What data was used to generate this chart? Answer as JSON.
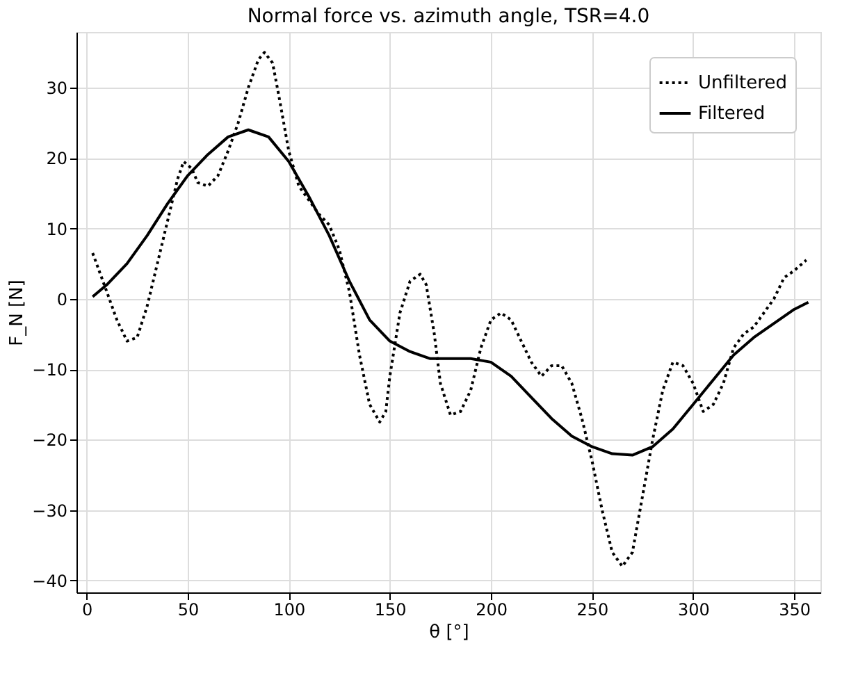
{
  "chart_data": {
    "type": "line",
    "title": "Normal force vs. azimuth angle, TSR=4.0",
    "xlabel": "θ [°]",
    "ylabel": "F_N [N]",
    "xlim": [
      -5,
      363
    ],
    "ylim": [
      -41.7,
      37.9
    ],
    "xticks": [
      0,
      50,
      100,
      150,
      200,
      250,
      300,
      350
    ],
    "yticks": [
      -40,
      -30,
      -20,
      -10,
      0,
      10,
      20,
      30
    ],
    "grid": true,
    "legend": "top right",
    "marker": "none",
    "series": [
      {
        "name": "Unfiltered",
        "color": "#000000",
        "line_style": "dotted",
        "x": [
          3,
          10,
          15,
          20,
          25,
          30,
          35,
          40,
          45,
          48,
          52,
          55,
          60,
          65,
          70,
          75,
          80,
          85,
          88,
          92,
          95,
          100,
          105,
          110,
          115,
          120,
          125,
          130,
          135,
          140,
          145,
          148,
          150,
          155,
          160,
          165,
          168,
          172,
          175,
          180,
          185,
          190,
          195,
          200,
          205,
          210,
          215,
          220,
          225,
          230,
          235,
          240,
          245,
          250,
          255,
          260,
          265,
          270,
          275,
          280,
          285,
          290,
          295,
          300,
          305,
          310,
          315,
          320,
          325,
          330,
          335,
          340,
          345,
          350,
          356
        ],
        "values": [
          6.5,
          1,
          -3,
          -6,
          -5.5,
          -1,
          5,
          11,
          17,
          19.5,
          18.5,
          16.5,
          16,
          17.5,
          21,
          25,
          30,
          34,
          35,
          33.5,
          29,
          21,
          16,
          14,
          12,
          10.5,
          7,
          1,
          -8,
          -15,
          -17.5,
          -16,
          -11,
          -2,
          2.5,
          3.5,
          2,
          -5,
          -12,
          -16.5,
          -16,
          -13,
          -7,
          -3,
          -2,
          -3,
          -6,
          -9,
          -11,
          -9.5,
          -9.5,
          -12,
          -17,
          -23,
          -30,
          -36,
          -38,
          -36,
          -28,
          -20,
          -13,
          -9,
          -9.5,
          -12,
          -16,
          -15,
          -12,
          -7,
          -5,
          -4,
          -2,
          0,
          3,
          4,
          5.5
        ]
      },
      {
        "name": "Filtered",
        "color": "#000000",
        "line_style": "solid",
        "x": [
          3,
          10,
          20,
          30,
          40,
          50,
          60,
          70,
          80,
          90,
          100,
          110,
          120,
          130,
          140,
          150,
          160,
          170,
          180,
          190,
          200,
          210,
          220,
          230,
          240,
          250,
          260,
          270,
          280,
          290,
          300,
          310,
          320,
          330,
          340,
          350,
          357
        ],
        "values": [
          0.3,
          2,
          5,
          9,
          13.5,
          17.5,
          20.5,
          23,
          24,
          23,
          19.5,
          14.5,
          9,
          2.5,
          -3,
          -6,
          -7.5,
          -8.5,
          -8.5,
          -8.5,
          -9,
          -11,
          -14,
          -17,
          -19.5,
          -21,
          -22,
          -22.2,
          -21,
          -18.5,
          -15,
          -11.5,
          -8,
          -5.5,
          -3.5,
          -1.5,
          -0.5
        ]
      }
    ]
  }
}
